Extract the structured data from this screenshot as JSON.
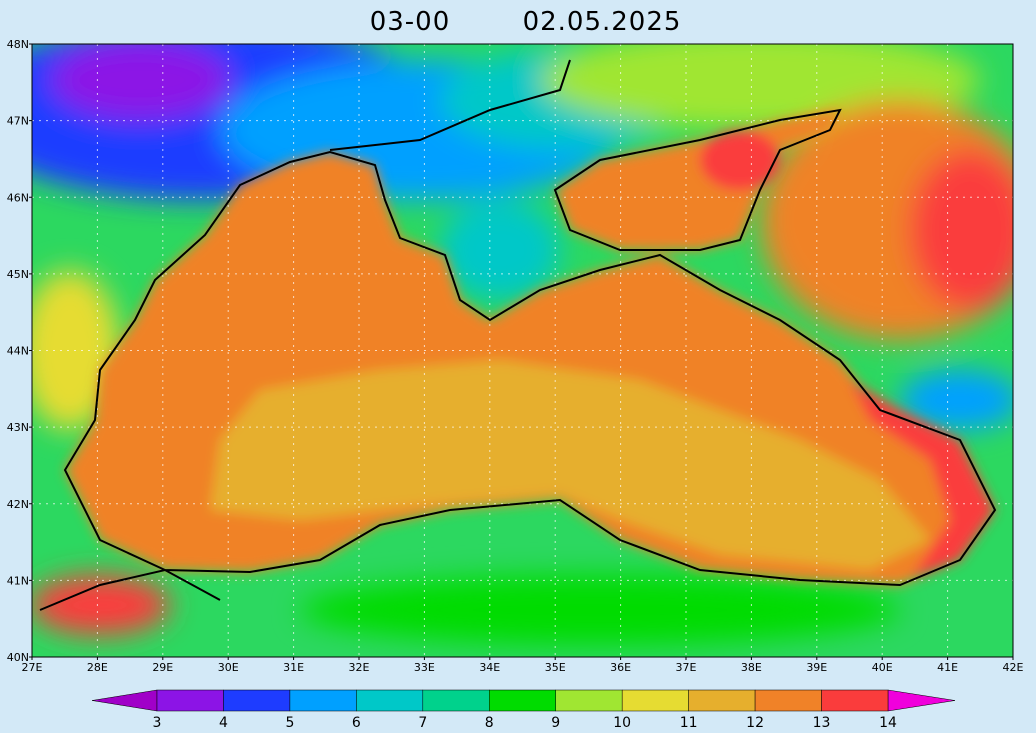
{
  "title": {
    "time": "03-00",
    "date": "02.05.2025"
  },
  "axes": {
    "lat_labels": [
      "48N",
      "47N",
      "46N",
      "45N",
      "44N",
      "43N",
      "42N",
      "41N",
      "40N"
    ],
    "lon_labels": [
      "27E",
      "28E",
      "29E",
      "30E",
      "31E",
      "32E",
      "33E",
      "34E",
      "35E",
      "36E",
      "37E",
      "38E",
      "39E",
      "40E",
      "41E",
      "42E"
    ]
  },
  "colorbar": {
    "ticks": [
      3,
      4,
      5,
      6,
      7,
      8,
      9,
      10,
      11,
      12,
      13,
      14
    ],
    "low_color": "#a000c8",
    "box_colors": [
      "#8c14e6",
      "#1e3cff",
      "#00a0ff",
      "#00c8c8",
      "#00d28c",
      "#00dc00",
      "#a0e632",
      "#e6dc32",
      "#e6af2d",
      "#f08228",
      "#fa3c3c"
    ],
    "high_color": "#f000dc"
  }
}
